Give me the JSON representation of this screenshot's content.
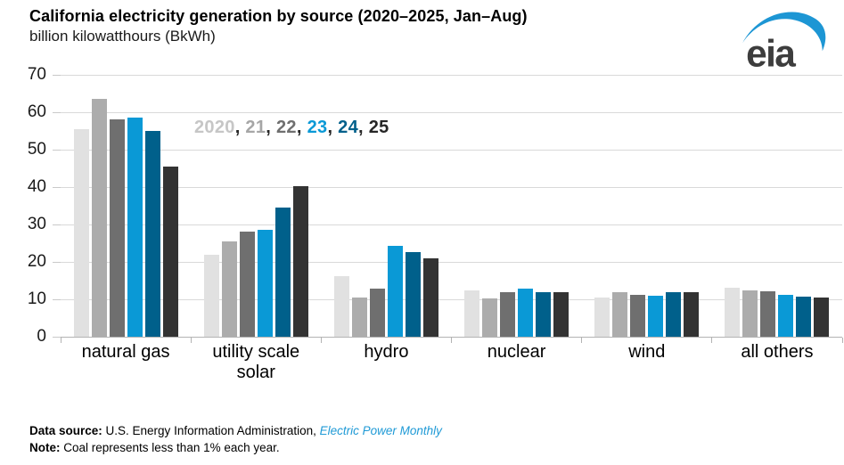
{
  "header": {
    "title": "California electricity generation by source (2020–2025, Jan–Aug)",
    "subtitle": "billion kilowatthours (BkWh)",
    "logo_text": "eia",
    "logo_swoosh_color": "#1d96d4"
  },
  "legend": {
    "separator": ", ",
    "separator_color": "#262626",
    "items": [
      {
        "label": "2020",
        "color": "#c6c6c6"
      },
      {
        "label": "21",
        "color": "#a6a6a6"
      },
      {
        "label": "22",
        "color": "#6f6f6f"
      },
      {
        "label": "23",
        "color": "#0a99d6"
      },
      {
        "label": "24",
        "color": "#00608b"
      },
      {
        "label": "25",
        "color": "#262626"
      }
    ]
  },
  "chart_data": {
    "type": "bar",
    "title": "California electricity generation by source (2020–2025, Jan–Aug)",
    "ylabel": "billion kilowatthours (BkWh)",
    "xlabel": "",
    "categories": [
      "natural gas",
      "utility scale solar",
      "hydro",
      "nuclear",
      "wind",
      "all others"
    ],
    "series": [
      {
        "name": "2020",
        "color": "#e1e1e1",
        "values": [
          55.5,
          22.0,
          16.3,
          12.4,
          10.6,
          13.0
        ]
      },
      {
        "name": "21",
        "color": "#acacac",
        "values": [
          63.5,
          25.5,
          10.4,
          10.3,
          11.8,
          12.3
        ]
      },
      {
        "name": "22",
        "color": "#6f6f6f",
        "values": [
          58.0,
          28.0,
          12.9,
          11.9,
          11.2,
          12.1
        ]
      },
      {
        "name": "23",
        "color": "#0a99d6",
        "values": [
          58.5,
          28.5,
          24.4,
          12.9,
          10.9,
          11.2
        ]
      },
      {
        "name": "24",
        "color": "#00608b",
        "values": [
          55.0,
          34.5,
          22.6,
          11.8,
          11.9,
          10.8
        ]
      },
      {
        "name": "25",
        "color": "#333333",
        "values": [
          45.5,
          40.3,
          20.9,
          11.8,
          11.9,
          10.6
        ]
      }
    ],
    "yticks": [
      0,
      10,
      20,
      30,
      40,
      50,
      60,
      70
    ],
    "ylim": [
      0,
      70
    ],
    "grid": "horizontal",
    "legend_position": "inside-top",
    "gridline_color": "#d9d9d9",
    "axis_color": "#b3b3b3"
  },
  "footer": {
    "source_label": "Data source:",
    "source_text": " U.S. Energy Information Administration, ",
    "source_link": "Electric Power Monthly",
    "note_label": "Note:",
    "note_text": " Coal represents less than 1% each year."
  }
}
